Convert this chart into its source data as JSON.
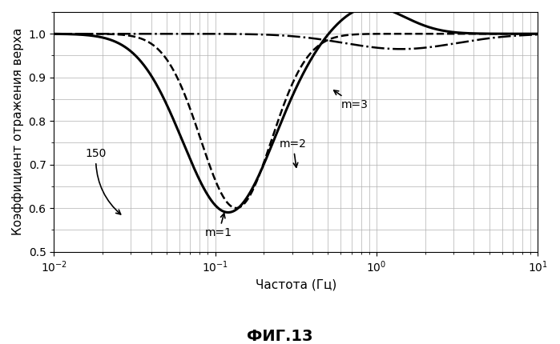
{
  "title": "ФИГ.13",
  "xlabel": "Частота (Гц)",
  "ylabel": "Коэффициент отражения верха",
  "xlim": [
    0.01,
    10
  ],
  "ylim": [
    0.5,
    1.05
  ],
  "yticks": [
    0.5,
    0.6,
    0.7,
    0.8,
    0.9,
    1.0
  ],
  "annotation_150": "150",
  "background_color": "#ffffff",
  "grid_color": "#b0b0b0"
}
